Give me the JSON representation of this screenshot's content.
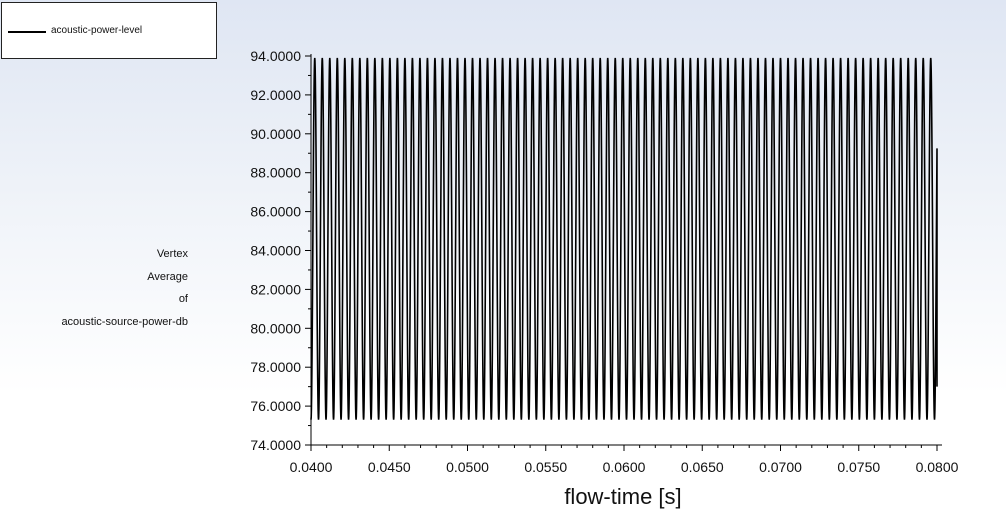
{
  "legend": {
    "entries": [
      "acoustic-power-level"
    ]
  },
  "chart_data": {
    "type": "line",
    "xlabel": "flow-time [s]",
    "ylabel_lines": [
      "Vertex",
      "Average",
      "of",
      "acoustic-source-power-db"
    ],
    "xlim": [
      0.04,
      0.08
    ],
    "ylim": [
      74,
      94
    ],
    "x_ticks": [
      "0.0400",
      "0.0450",
      "0.0500",
      "0.0550",
      "0.0600",
      "0.0650",
      "0.0700",
      "0.0750",
      "0.0800"
    ],
    "y_ticks": [
      "74.0000",
      "76.0000",
      "78.0000",
      "80.0000",
      "82.0000",
      "84.0000",
      "86.0000",
      "88.0000",
      "90.0000",
      "92.0000",
      "94.0000"
    ],
    "grid": false,
    "legend_position": "top-left",
    "series": [
      {
        "name": "acoustic-power-level",
        "color": "#000000",
        "x_start": 0.04,
        "x_end": 0.08,
        "period": 0.00048,
        "y_min": 75.3,
        "y_max": 93.9,
        "y_end": 77.0
      }
    ]
  }
}
